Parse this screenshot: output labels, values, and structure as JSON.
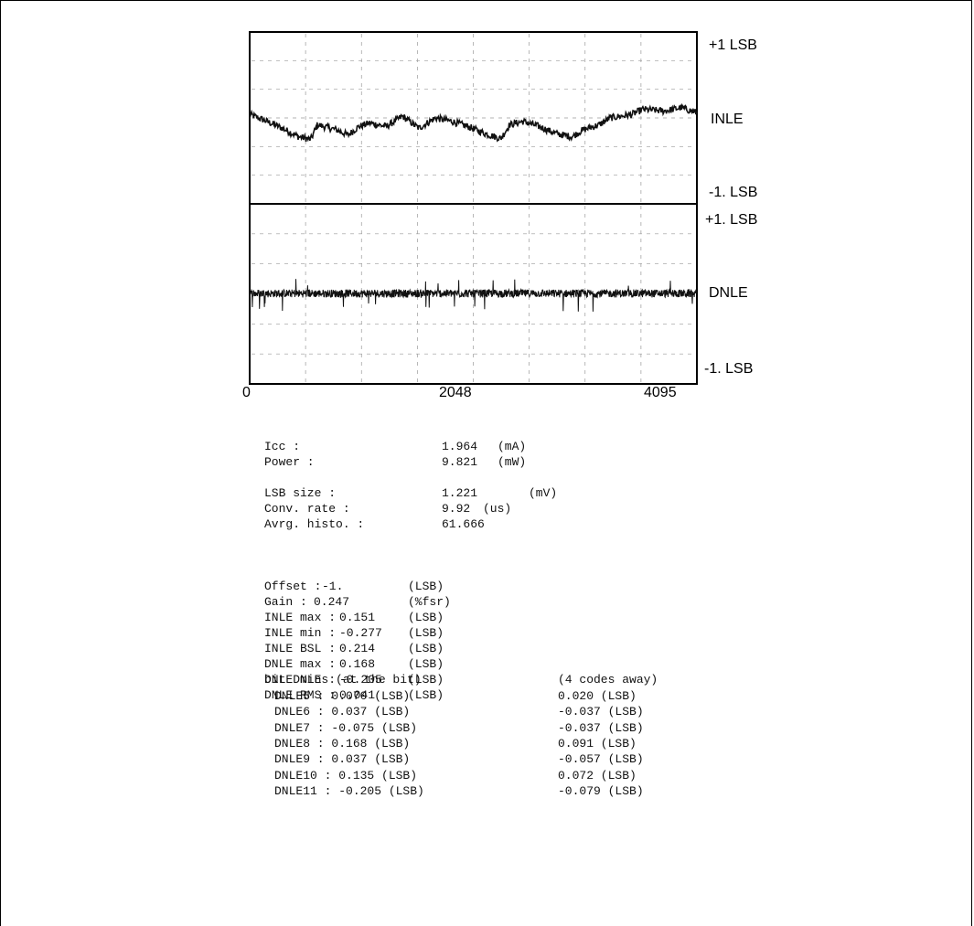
{
  "chart_data": [
    {
      "type": "line",
      "series": [
        {
          "name": "INLE",
          "values": []
        }
      ],
      "x_range": [
        0,
        4095
      ],
      "ylim": [
        -1,
        1
      ],
      "right_labels": {
        "top": "+1 LSB",
        "mid": "INLE",
        "bottom": "-1. LSB"
      },
      "trend": [
        [
          0,
          0.04
        ],
        [
          120,
          -0.02
        ],
        [
          300,
          -0.12
        ],
        [
          450,
          -0.22
        ],
        [
          560,
          -0.25
        ],
        [
          620,
          -0.08
        ],
        [
          800,
          -0.14
        ],
        [
          900,
          -0.2
        ],
        [
          1000,
          -0.1
        ],
        [
          1100,
          -0.06
        ],
        [
          1250,
          -0.1
        ],
        [
          1400,
          0.02
        ],
        [
          1550,
          -0.12
        ],
        [
          1700,
          0.0
        ],
        [
          1850,
          -0.04
        ],
        [
          2000,
          -0.1
        ],
        [
          2150,
          -0.18
        ],
        [
          2300,
          -0.24
        ],
        [
          2380,
          -0.08
        ],
        [
          2500,
          -0.04
        ],
        [
          2650,
          -0.1
        ],
        [
          2800,
          -0.18
        ],
        [
          2950,
          -0.22
        ],
        [
          3050,
          -0.14
        ],
        [
          3200,
          -0.08
        ],
        [
          3300,
          0.0
        ],
        [
          3500,
          0.04
        ],
        [
          3600,
          0.1
        ],
        [
          3800,
          0.08
        ],
        [
          3950,
          0.12
        ],
        [
          4095,
          0.06
        ]
      ]
    },
    {
      "type": "line",
      "series": [
        {
          "name": "DNLE",
          "values": []
        }
      ],
      "x_range": [
        0,
        4095
      ],
      "ylim": [
        -1,
        1
      ],
      "rms": 0.041,
      "max": 0.168,
      "min": -0.205,
      "right_labels": {
        "top": "+1. LSB",
        "mid": "DNLE",
        "bottom": "-1. LSB"
      },
      "x_ticks": [
        "0",
        "2048",
        "4095"
      ]
    }
  ],
  "x_ticks": [
    "0",
    "2048",
    "4095"
  ],
  "metrics": {
    "icc": {
      "label": "Icc :",
      "value": "1.964",
      "unit": "(mA)"
    },
    "power": {
      "label": "Power :",
      "value": "9.821",
      "unit": "(mW)"
    },
    "lsb_size": {
      "label": "LSB size :",
      "value": "1.221",
      "unit": "(mV)"
    },
    "conv_rate": {
      "label": "Conv. rate :",
      "value": "9.92",
      "unit": "(us)"
    },
    "avrg_histo": {
      "label": "Avrg. histo. :",
      "value": "61.666"
    }
  },
  "errors": [
    {
      "label": "Offset :",
      "value": "-1.",
      "unit": "(LSB)"
    },
    {
      "label": "Gain :",
      "value": "0.247",
      "unit": "(%fsr)"
    },
    {
      "label": "INLE max :",
      "value": "0.151",
      "unit": "(LSB)"
    },
    {
      "label": "INLE min :",
      "value": "-0.277",
      "unit": "(LSB)"
    },
    {
      "label": "INLE BSL :",
      "value": "0.214",
      "unit": "(LSB)"
    },
    {
      "label": "DNLE max :",
      "value": "0.168",
      "unit": "(LSB)"
    },
    {
      "label": "DNLE min :",
      "value": "-0.205",
      "unit": "(LSB)"
    },
    {
      "label": "DNLE RMS :",
      "value": "0.041",
      "unit": "(LSB)"
    }
  ],
  "bit_dnle": {
    "header_left": "bit DNLEs (at the bit)",
    "header_right": "(4 codes away)",
    "rows": [
      {
        "left": "DNLE5 : 0.070 (LSB)",
        "right": "0.020 (LSB)"
      },
      {
        "left": "DNLE6 : 0.037 (LSB)",
        "right": "-0.037 (LSB)"
      },
      {
        "left": "DNLE7 : -0.075 (LSB)",
        "right": "-0.037 (LSB)"
      },
      {
        "left": "DNLE8 : 0.168 (LSB)",
        "right": "0.091 (LSB)"
      },
      {
        "left": "DNLE9 : 0.037 (LSB)",
        "right": "-0.057 (LSB)"
      },
      {
        "left": "DNLE10 : 0.135 (LSB)",
        "right": "0.072 (LSB)"
      },
      {
        "left": "DNLE11 : -0.205 (LSB)",
        "right": "-0.079 (LSB)"
      }
    ]
  }
}
